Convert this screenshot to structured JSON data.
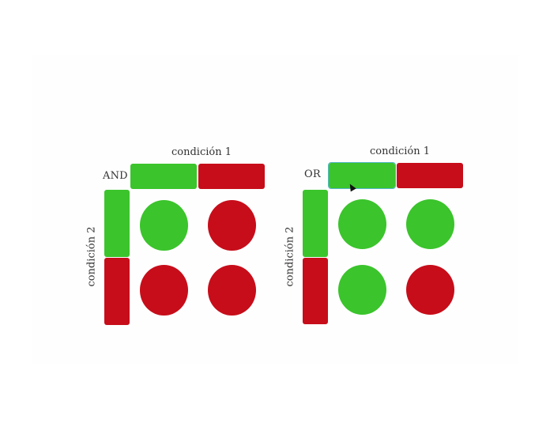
{
  "colors": {
    "true": "#3bc42c",
    "false": "#c70d1a"
  },
  "panels": [
    {
      "operator": "AND",
      "condition1_label": "condición 1",
      "condition2_label": "condición 2",
      "condition1_bars": [
        "true",
        "false"
      ],
      "condition2_bars": [
        "true",
        "false"
      ],
      "cells": [
        [
          "true",
          "false"
        ],
        [
          "false",
          "false"
        ]
      ]
    },
    {
      "operator": "OR",
      "condition1_label": "condición 1",
      "condition2_label": "condición 2",
      "condition1_bars": [
        "true",
        "false"
      ],
      "condition2_bars": [
        "true",
        "false"
      ],
      "cells": [
        [
          "true",
          "true"
        ],
        [
          "true",
          "false"
        ]
      ]
    }
  ],
  "icons": {
    "pointer": "mouse-pointer-icon"
  }
}
